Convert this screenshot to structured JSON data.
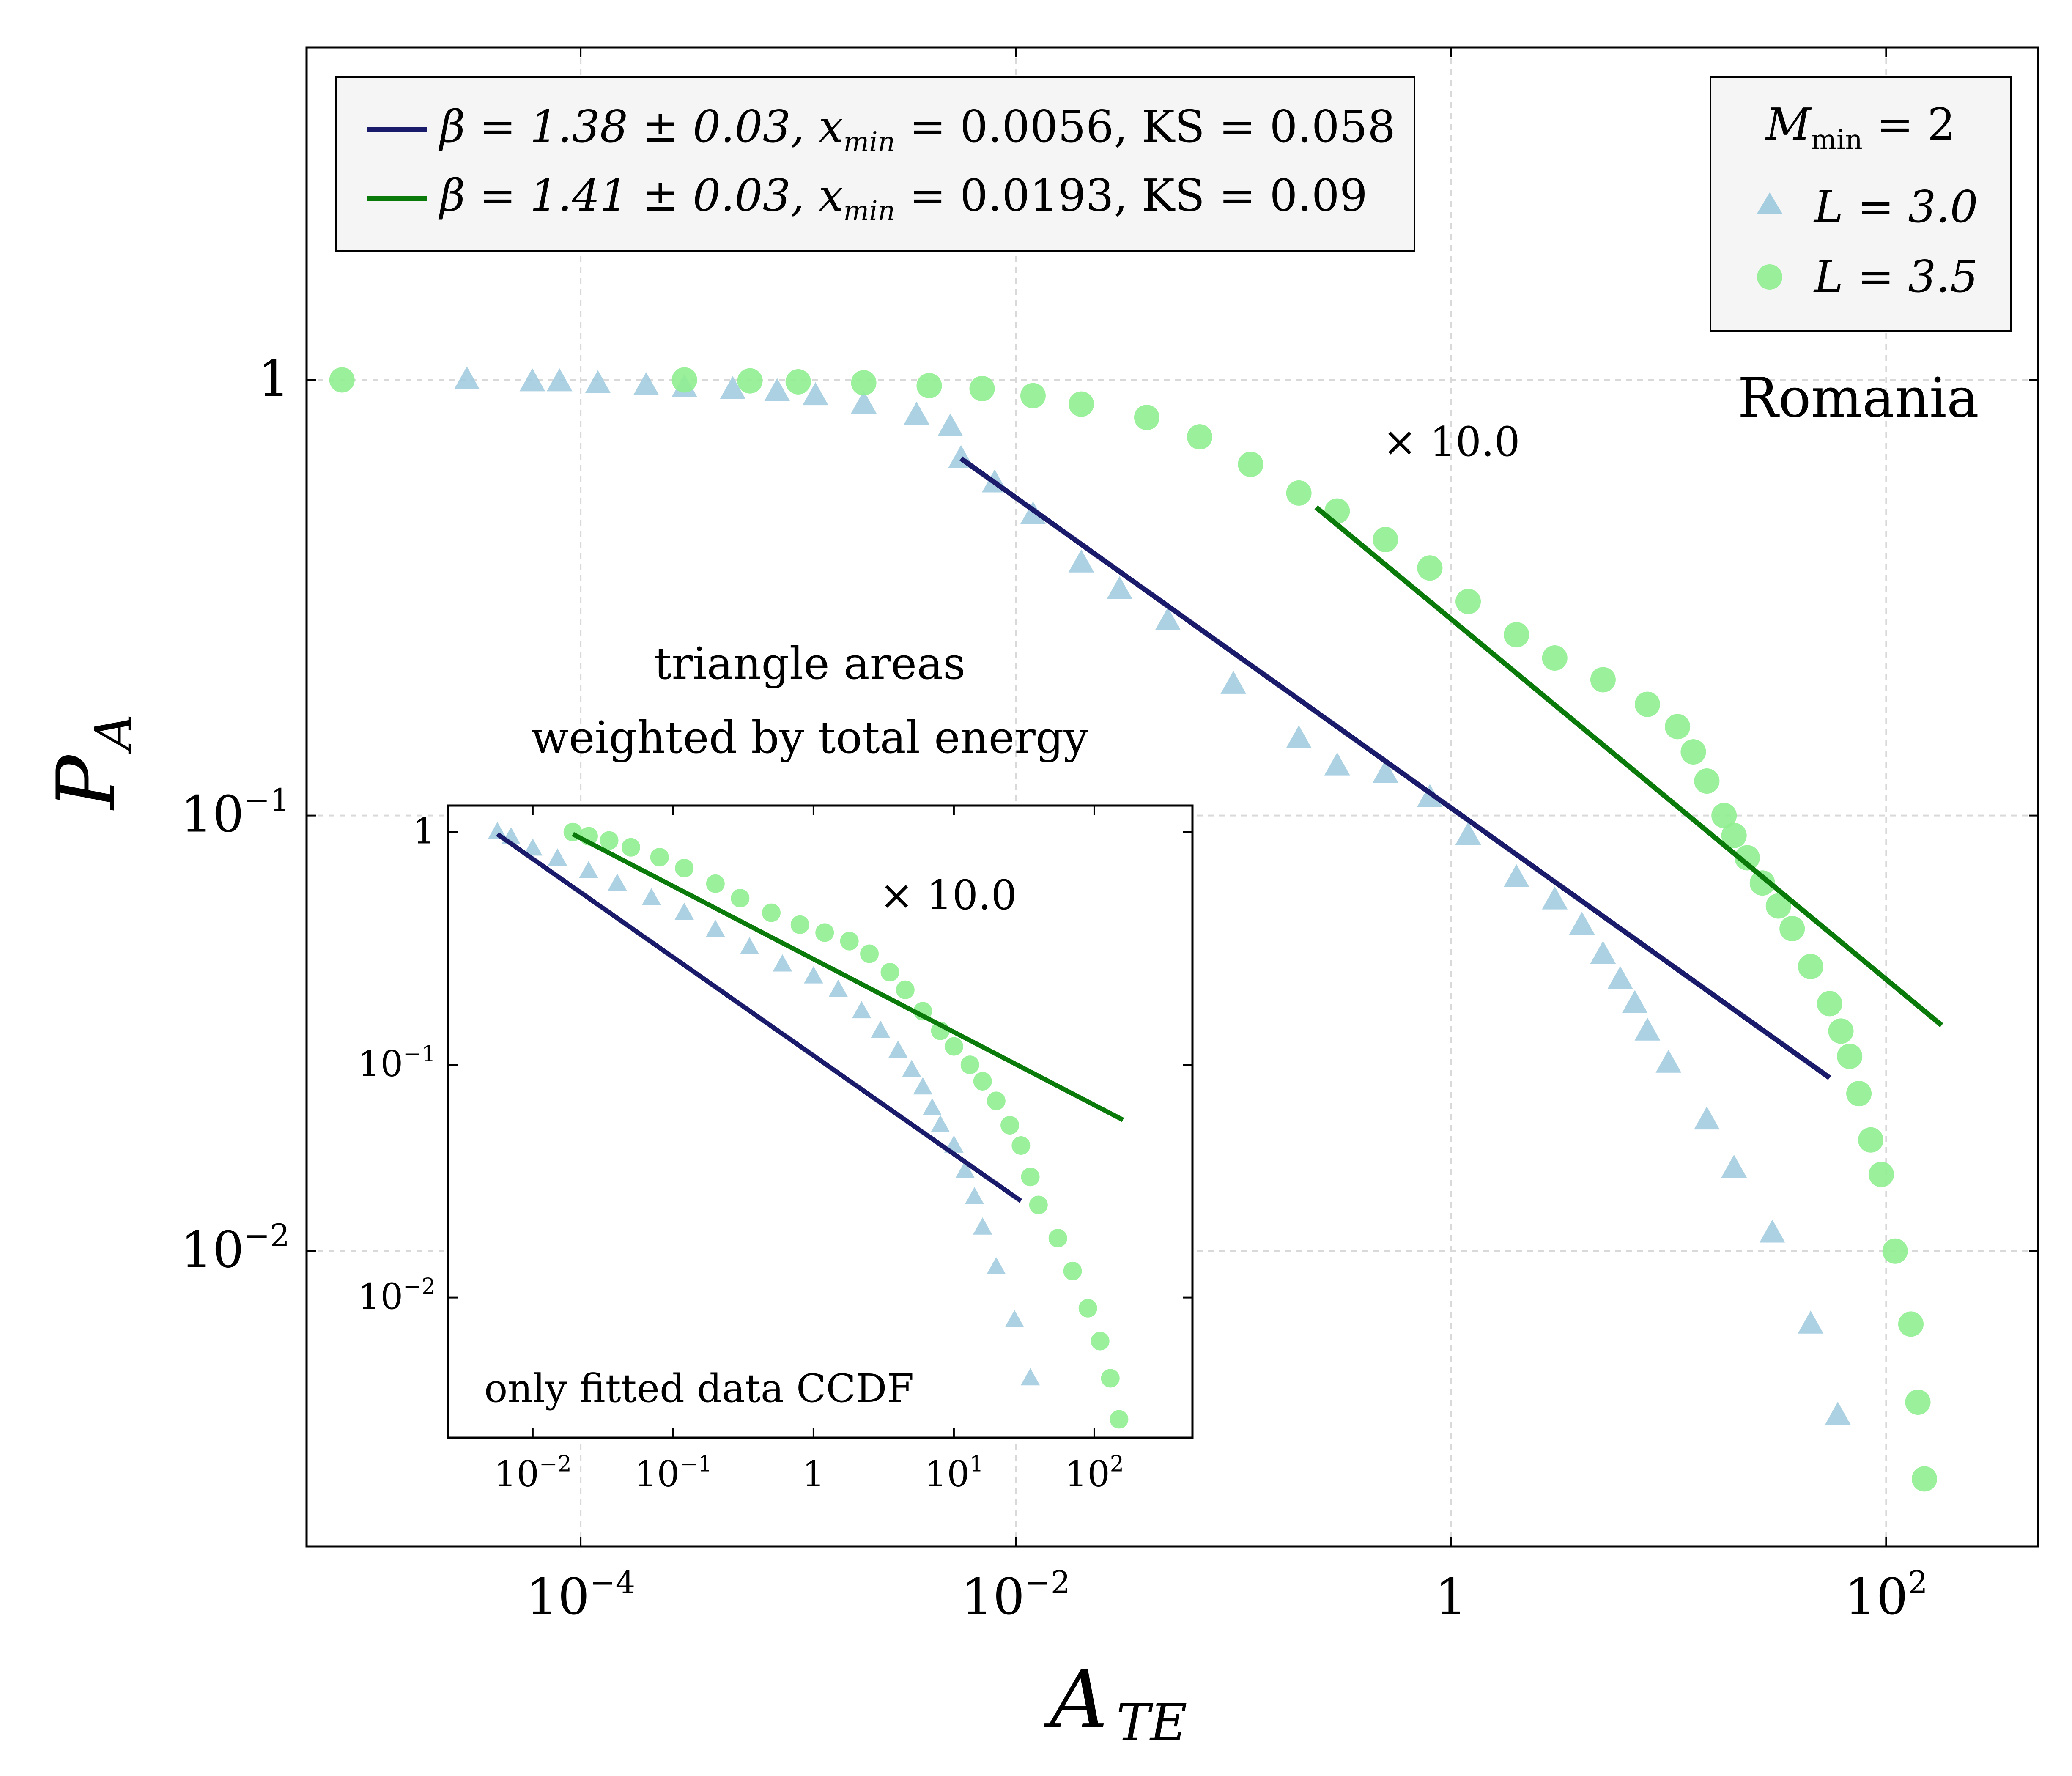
{
  "chart_data": [
    {
      "type": "scatter",
      "panel": "main",
      "xscale": "log",
      "yscale": "log",
      "xlabel": "A",
      "xlabel_sub": "TE",
      "ylabel": "P",
      "ylabel_sub": "A",
      "xlim": [
        5.5e-06,
        500
      ],
      "ylim": [
        0.0021,
        5.8
      ],
      "xticks": [
        {
          "value": 0.0001,
          "base": "10",
          "exp": "−4"
        },
        {
          "value": 0.01,
          "base": "10",
          "exp": "−2"
        },
        {
          "value": 1,
          "base": "1",
          "exp": ""
        },
        {
          "value": 100,
          "base": "10",
          "exp": "2"
        }
      ],
      "yticks": [
        {
          "value": 1,
          "base": "1",
          "exp": ""
        },
        {
          "value": 0.1,
          "base": "10",
          "exp": "−1"
        },
        {
          "value": 0.01,
          "base": "10",
          "exp": "−2"
        }
      ],
      "grid": true,
      "series": [
        {
          "name": "L = 3.0",
          "marker": "triangle",
          "color": "#9cc9de",
          "points": [
            [
              3e-05,
              1.0
            ],
            [
              6e-05,
              0.99
            ],
            [
              8e-05,
              0.99
            ],
            [
              0.00012,
              0.98
            ],
            [
              0.0002,
              0.97
            ],
            [
              0.0003,
              0.96
            ],
            [
              0.0005,
              0.95
            ],
            [
              0.0008,
              0.94
            ],
            [
              0.0012,
              0.92
            ],
            [
              0.002,
              0.88
            ],
            [
              0.0035,
              0.83
            ],
            [
              0.005,
              0.78
            ],
            [
              0.0056,
              0.66
            ],
            [
              0.008,
              0.58
            ],
            [
              0.012,
              0.49
            ],
            [
              0.02,
              0.38
            ],
            [
              0.03,
              0.33
            ],
            [
              0.05,
              0.28
            ],
            [
              0.1,
              0.2
            ],
            [
              0.2,
              0.15
            ],
            [
              0.3,
              0.13
            ],
            [
              0.5,
              0.125
            ],
            [
              0.8,
              0.11
            ],
            [
              1.2,
              0.09
            ],
            [
              2,
              0.072
            ],
            [
              3,
              0.064
            ],
            [
              4,
              0.056
            ],
            [
              5,
              0.048
            ],
            [
              6,
              0.042
            ],
            [
              7,
              0.037
            ],
            [
              8,
              0.032
            ],
            [
              10,
              0.027
            ],
            [
              15,
              0.02
            ],
            [
              20,
              0.0155
            ],
            [
              30,
              0.011
            ],
            [
              45,
              0.0068
            ],
            [
              60,
              0.0042
            ]
          ]
        },
        {
          "name": "L = 3.5",
          "marker": "circle",
          "color": "#90ee90",
          "points": [
            [
              8e-06,
              1.0
            ],
            [
              0.0003,
              1.0
            ],
            [
              0.0006,
              0.995
            ],
            [
              0.001,
              0.99
            ],
            [
              0.002,
              0.985
            ],
            [
              0.004,
              0.97
            ],
            [
              0.007,
              0.955
            ],
            [
              0.012,
              0.92
            ],
            [
              0.02,
              0.88
            ],
            [
              0.04,
              0.82
            ],
            [
              0.07,
              0.74
            ],
            [
              0.12,
              0.64
            ],
            [
              0.2,
              0.55
            ],
            [
              0.3,
              0.5
            ],
            [
              0.5,
              0.43
            ],
            [
              0.8,
              0.37
            ],
            [
              1.2,
              0.31
            ],
            [
              2,
              0.26
            ],
            [
              3,
              0.23
            ],
            [
              5,
              0.205
            ],
            [
              8,
              0.18
            ],
            [
              11,
              0.16
            ],
            [
              13,
              0.14
            ],
            [
              15,
              0.12
            ],
            [
              18,
              0.1
            ],
            [
              20,
              0.09
            ],
            [
              23,
              0.08
            ],
            [
              27,
              0.07
            ],
            [
              32,
              0.062
            ],
            [
              37,
              0.055
            ],
            [
              45,
              0.045
            ],
            [
              55,
              0.037
            ],
            [
              62,
              0.032
            ],
            [
              68,
              0.028
            ],
            [
              75,
              0.023
            ],
            [
              85,
              0.018
            ],
            [
              95,
              0.015
            ],
            [
              110,
              0.01
            ],
            [
              130,
              0.0068
            ],
            [
              140,
              0.0045
            ],
            [
              150,
              0.003
            ]
          ]
        }
      ],
      "fit_lines": [
        {
          "label": "β = 1.38 ± 0.03, x",
          "sub": "min",
          "label_tail": " = 0.0056, KS = 0.058",
          "color": "#1b1b6b",
          "beta": 1.38,
          "beta_err": 0.03,
          "xmin": 0.0056,
          "ks": 0.058,
          "from": [
            0.0056,
            0.66
          ],
          "to": [
            55,
            0.025
          ]
        },
        {
          "label": "β = 1.41 ± 0.03, x",
          "sub": "min",
          "label_tail": " = 0.0193, KS = 0.09",
          "color": "#0a7a0a",
          "beta": 1.41,
          "beta_err": 0.03,
          "xmin": 0.0193,
          "ks": 0.09,
          "from": [
            0.24,
            0.51
          ],
          "to": [
            180,
            0.033
          ]
        }
      ]
    },
    {
      "type": "scatter",
      "panel": "inset",
      "xscale": "log",
      "yscale": "log",
      "xlim": [
        0.0025,
        500
      ],
      "ylim": [
        0.0025,
        1.3
      ],
      "xticks": [
        {
          "value": 0.01,
          "base": "10",
          "exp": "−2"
        },
        {
          "value": 0.1,
          "base": "10",
          "exp": "−1"
        },
        {
          "value": 1,
          "base": "1",
          "exp": ""
        },
        {
          "value": 10,
          "base": "10",
          "exp": "1"
        },
        {
          "value": 100,
          "base": "10",
          "exp": "2"
        }
      ],
      "yticks": [
        {
          "value": 1,
          "base": "1",
          "exp": ""
        },
        {
          "value": 0.1,
          "base": "10",
          "exp": "−1"
        },
        {
          "value": 0.01,
          "base": "10",
          "exp": "−2"
        }
      ],
      "series": [
        {
          "name": "L = 3.0",
          "marker": "triangle",
          "color": "#9cc9de",
          "points": [
            [
              0.0056,
              1.0
            ],
            [
              0.007,
              0.95
            ],
            [
              0.01,
              0.85
            ],
            [
              0.015,
              0.77
            ],
            [
              0.025,
              0.68
            ],
            [
              0.04,
              0.6
            ],
            [
              0.07,
              0.52
            ],
            [
              0.12,
              0.45
            ],
            [
              0.2,
              0.38
            ],
            [
              0.35,
              0.32
            ],
            [
              0.6,
              0.27
            ],
            [
              1,
              0.24
            ],
            [
              1.5,
              0.21
            ],
            [
              2.2,
              0.17
            ],
            [
              3,
              0.14
            ],
            [
              4,
              0.115
            ],
            [
              5,
              0.095
            ],
            [
              6,
              0.08
            ],
            [
              7,
              0.065
            ],
            [
              8,
              0.055
            ],
            [
              10,
              0.045
            ],
            [
              12,
              0.035
            ],
            [
              14,
              0.027
            ],
            [
              16,
              0.02
            ],
            [
              20,
              0.0135
            ],
            [
              27,
              0.008
            ],
            [
              35,
              0.0045
            ]
          ]
        },
        {
          "name": "L = 3.5",
          "marker": "circle",
          "color": "#90ee90",
          "points": [
            [
              0.0193,
              1.0
            ],
            [
              0.025,
              0.96
            ],
            [
              0.035,
              0.92
            ],
            [
              0.05,
              0.86
            ],
            [
              0.08,
              0.78
            ],
            [
              0.12,
              0.7
            ],
            [
              0.2,
              0.6
            ],
            [
              0.3,
              0.52
            ],
            [
              0.5,
              0.45
            ],
            [
              0.8,
              0.4
            ],
            [
              1.2,
              0.37
            ],
            [
              1.8,
              0.34
            ],
            [
              2.5,
              0.3
            ],
            [
              3.5,
              0.25
            ],
            [
              4.5,
              0.21
            ],
            [
              6,
              0.17
            ],
            [
              8,
              0.14
            ],
            [
              10,
              0.12
            ],
            [
              13,
              0.1
            ],
            [
              16,
              0.085
            ],
            [
              20,
              0.07
            ],
            [
              25,
              0.055
            ],
            [
              30,
              0.045
            ],
            [
              35,
              0.033
            ],
            [
              40,
              0.025
            ],
            [
              55,
              0.018
            ],
            [
              70,
              0.013
            ],
            [
              90,
              0.009
            ],
            [
              110,
              0.0065
            ],
            [
              130,
              0.0045
            ],
            [
              150,
              0.003
            ]
          ]
        }
      ],
      "fit_lines": [
        {
          "color": "#1b1b6b",
          "from": [
            0.0056,
            0.98
          ],
          "to": [
            30,
            0.026
          ]
        },
        {
          "color": "#0a7a0a",
          "from": [
            0.0193,
            0.98
          ],
          "to": [
            160,
            0.058
          ]
        }
      ]
    }
  ],
  "legend_fits": {
    "items": [
      {
        "pre": "β = 1.38 ± 0.03, x",
        "sub": "min",
        "post": " = 0.0056, KS = 0.058"
      },
      {
        "pre": "β = 1.41 ± 0.03, x",
        "sub": "min",
        "post": " = 0.0193, KS = 0.09"
      }
    ]
  },
  "legend_series": {
    "title_pre": "M",
    "title_sub": "min",
    "title_post": " = 2",
    "items": [
      "L = 3.0",
      "L = 3.5"
    ]
  },
  "annotations": {
    "country": "Romania",
    "scale_main": "× 10.0",
    "scale_inset": "× 10.0",
    "caption_line1": "triangle areas",
    "caption_line2": "weighted by total energy",
    "inset_note": "only fitted data CCDF"
  },
  "colors": {
    "fit_a": "#1b1b6b",
    "fit_b": "#0a7a0a",
    "triangles": "#9cc9de",
    "circles": "#90ee90",
    "legend_bg": "#f5f5f5",
    "grid": "#d9d9d9"
  }
}
